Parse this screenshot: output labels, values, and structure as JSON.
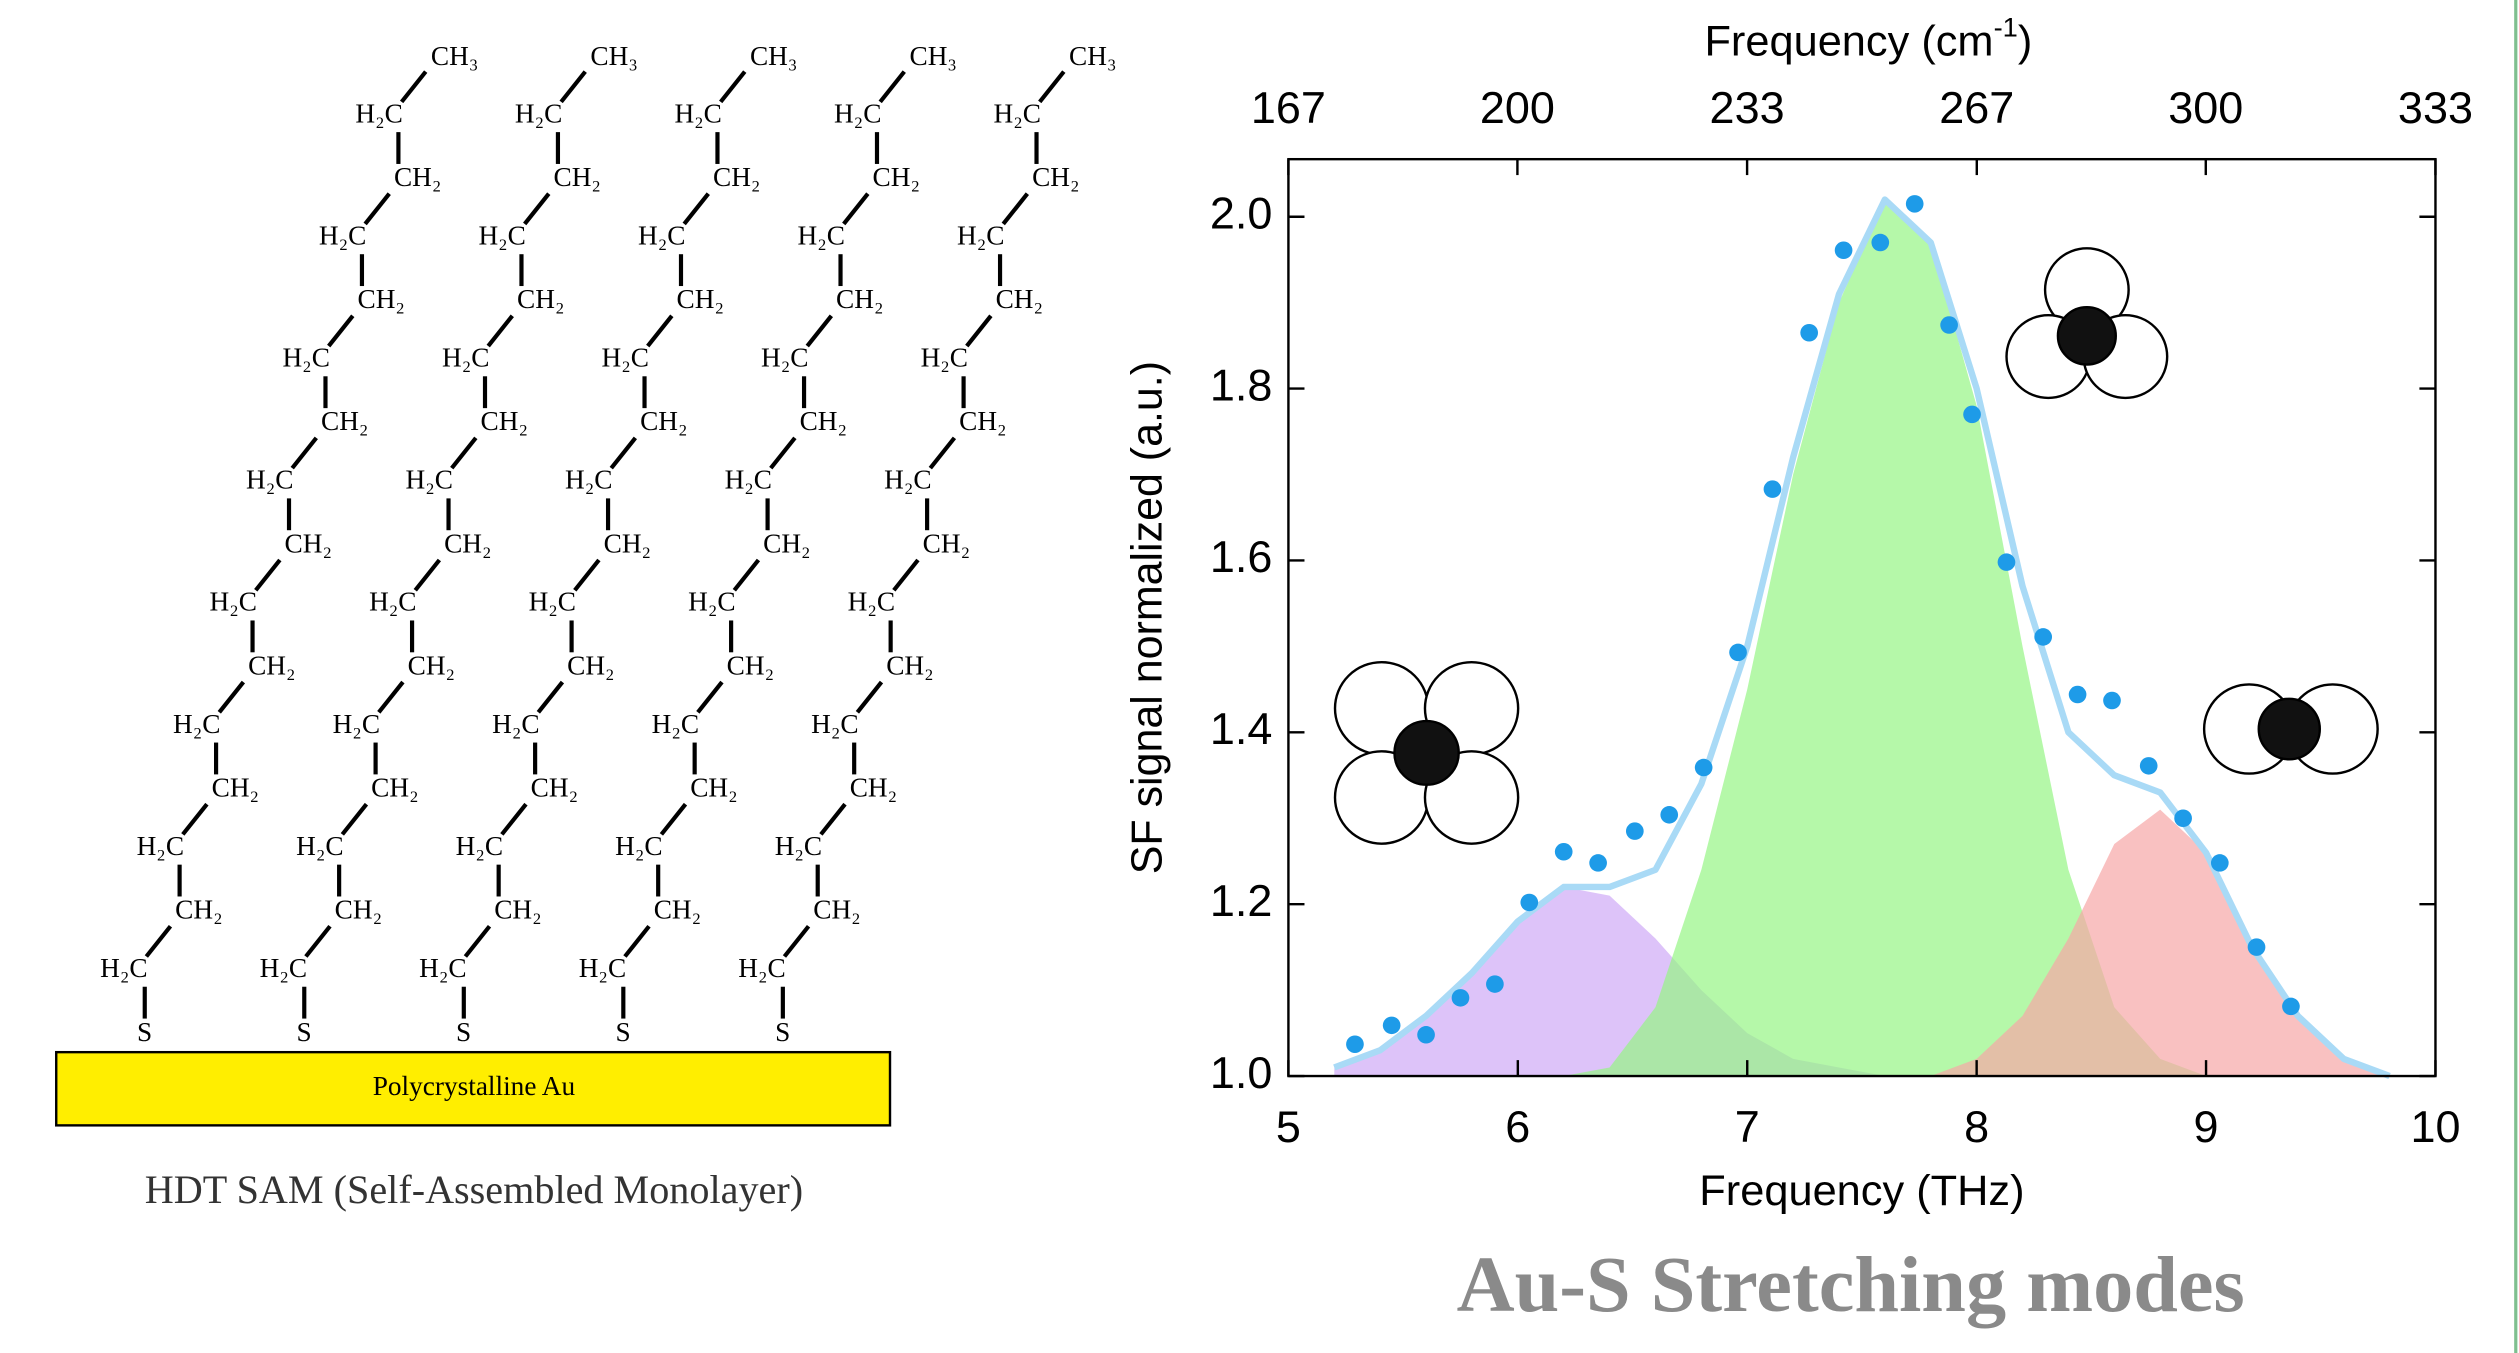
{
  "chart_data": {
    "type": "line",
    "x_label": "Frequency (THz)",
    "y_label": "SF signal normalized (a.u.)",
    "x2_label": [
      "Frequency (cm",
      "-1",
      ")"
    ],
    "xlim": [
      5,
      10
    ],
    "xticks": [
      5,
      6,
      7,
      8,
      9,
      10
    ],
    "ylim": [
      1.0,
      2.067
    ],
    "yticks": [
      {
        "value": 1.0,
        "label": "1.0"
      },
      1.2,
      1.4,
      1.6,
      1.8,
      {
        "value": 2.0,
        "label": "2.0"
      }
    ],
    "x2lim": [
      166.8,
      333.6
    ],
    "x2ticks": [
      {
        "value": 166.8,
        "label": "167"
      },
      {
        "value": 200.1,
        "label": "200"
      },
      {
        "value": 233.5,
        "label": "233"
      },
      {
        "value": 266.9,
        "label": "267"
      },
      {
        "value": 300.2,
        "label": "300"
      },
      {
        "value": 333.6,
        "label": "333"
      }
    ],
    "series": [
      {
        "type": "area",
        "color": "#cfa9f7",
        "x": [
          5.2,
          5.4,
          5.6,
          5.8,
          6.0,
          6.2,
          6.4,
          6.6,
          6.8,
          7.0,
          7.2,
          7.4,
          7.6,
          7.8,
          8.0,
          8.2,
          8.4,
          8.6,
          8.8,
          9.0,
          9.2,
          9.4,
          9.6,
          9.8
        ],
        "values": [
          1.01,
          1.03,
          1.07,
          1.12,
          1.18,
          1.22,
          1.21,
          1.16,
          1.1,
          1.05,
          1.02,
          1.01,
          1.0,
          1.0,
          1.0,
          1.0,
          1.0,
          1.0,
          1.0,
          1.0,
          1.0,
          1.0,
          1.0,
          1.0
        ]
      },
      {
        "type": "area",
        "color": "#96f585",
        "x": [
          5.2,
          5.4,
          5.6,
          5.8,
          6.0,
          6.2,
          6.4,
          6.6,
          6.8,
          7.0,
          7.2,
          7.4,
          7.6,
          7.8,
          8.0,
          8.2,
          8.4,
          8.6,
          8.8,
          9.0,
          9.2,
          9.4,
          9.6,
          9.8
        ],
        "values": [
          1.0,
          1.0,
          1.0,
          1.0,
          1.0,
          1.0,
          1.01,
          1.08,
          1.24,
          1.45,
          1.7,
          1.9,
          2.02,
          1.97,
          1.78,
          1.5,
          1.24,
          1.08,
          1.02,
          1.0,
          1.0,
          1.0,
          1.0,
          1.0
        ]
      },
      {
        "type": "area",
        "color": "#f7a7a7",
        "x": [
          5.2,
          5.4,
          5.6,
          5.8,
          6.0,
          6.2,
          6.4,
          6.6,
          6.8,
          7.0,
          7.2,
          7.4,
          7.6,
          7.8,
          8.0,
          8.2,
          8.4,
          8.6,
          8.8,
          9.0,
          9.2,
          9.4,
          9.6,
          9.8
        ],
        "values": [
          1.0,
          1.0,
          1.0,
          1.0,
          1.0,
          1.0,
          1.0,
          1.0,
          1.0,
          1.0,
          1.0,
          1.0,
          1.0,
          1.0,
          1.02,
          1.07,
          1.16,
          1.27,
          1.31,
          1.26,
          1.15,
          1.07,
          1.02,
          1.0
        ]
      },
      {
        "type": "line",
        "color": "#a9daf6",
        "x": [
          5.2,
          5.4,
          5.6,
          5.8,
          6.0,
          6.2,
          6.4,
          6.6,
          6.8,
          7.0,
          7.2,
          7.4,
          7.6,
          7.8,
          8.0,
          8.2,
          8.4,
          8.6,
          8.8,
          9.0,
          9.2,
          9.4,
          9.6,
          9.8
        ],
        "values": [
          1.01,
          1.03,
          1.07,
          1.12,
          1.18,
          1.22,
          1.22,
          1.24,
          1.34,
          1.5,
          1.72,
          1.91,
          2.02,
          1.97,
          1.8,
          1.57,
          1.4,
          1.35,
          1.33,
          1.26,
          1.15,
          1.07,
          1.02,
          1.0
        ]
      },
      {
        "type": "scatter",
        "color": "#1e9be8",
        "x": [
          5.29,
          5.45,
          5.6,
          5.75,
          5.9,
          6.05,
          6.2,
          6.35,
          6.51,
          6.66,
          6.81,
          6.96,
          7.11,
          7.27,
          7.42,
          7.58,
          7.73,
          7.88,
          7.98,
          8.13,
          8.29,
          8.44,
          8.59,
          8.75,
          8.9,
          9.06,
          9.22,
          9.37
        ],
        "values": [
          1.037,
          1.059,
          1.048,
          1.091,
          1.107,
          1.202,
          1.261,
          1.248,
          1.285,
          1.304,
          1.359,
          1.493,
          1.683,
          1.865,
          1.961,
          1.97,
          2.015,
          1.874,
          1.77,
          1.598,
          1.511,
          1.444,
          1.437,
          1.361,
          1.3,
          1.248,
          1.15,
          1.081
        ]
      }
    ]
  },
  "caption": "Au-S Stretching modes",
  "diagram": {
    "groups": [
      "CH₃",
      "H₂C",
      "CH₂",
      "H₂C",
      "CH₂",
      "H₂C",
      "CH₂",
      "H₂C",
      "CH₂",
      "H₂C",
      "CH₂",
      "H₂C",
      "CH₂",
      "H₂C",
      "CH₂",
      "H₂C",
      "S"
    ],
    "substrate": "Polycrystalline Au",
    "caption": "HDT SAM (Self-Assembled Monolayer)"
  }
}
